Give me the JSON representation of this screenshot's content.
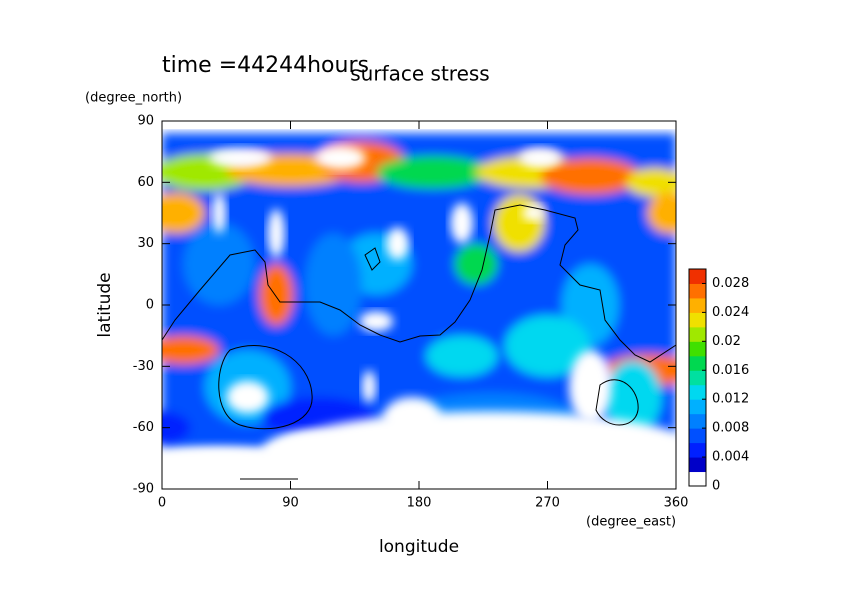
{
  "chart_data": {
    "type": "contour",
    "title": "surface stress",
    "subtitle": "time =44244hours",
    "x_label": "longitude",
    "x_unit": "(degree_east)",
    "y_label": "latitude",
    "y_unit": "(degree_north)",
    "xlim": [
      0,
      360
    ],
    "xticks": [
      0,
      90,
      180,
      270,
      360
    ],
    "ylim": [
      -90,
      90
    ],
    "yticks": [
      -90,
      -60,
      -30,
      0,
      30,
      60,
      90
    ],
    "colorbar": {
      "lim": [
        0,
        0.03
      ],
      "ticks": [
        0,
        0.004,
        0.008,
        0.012,
        0.016,
        0.02,
        0.024,
        0.028
      ],
      "colors": [
        "#ffffff",
        "#0000c8",
        "#0020ff",
        "#0050ff",
        "#0080ff",
        "#00b0ff",
        "#00d8f0",
        "#00e0a0",
        "#00d850",
        "#40e000",
        "#a0e800",
        "#f0e000",
        "#ffb000",
        "#ff7000",
        "#f03000"
      ]
    }
  }
}
